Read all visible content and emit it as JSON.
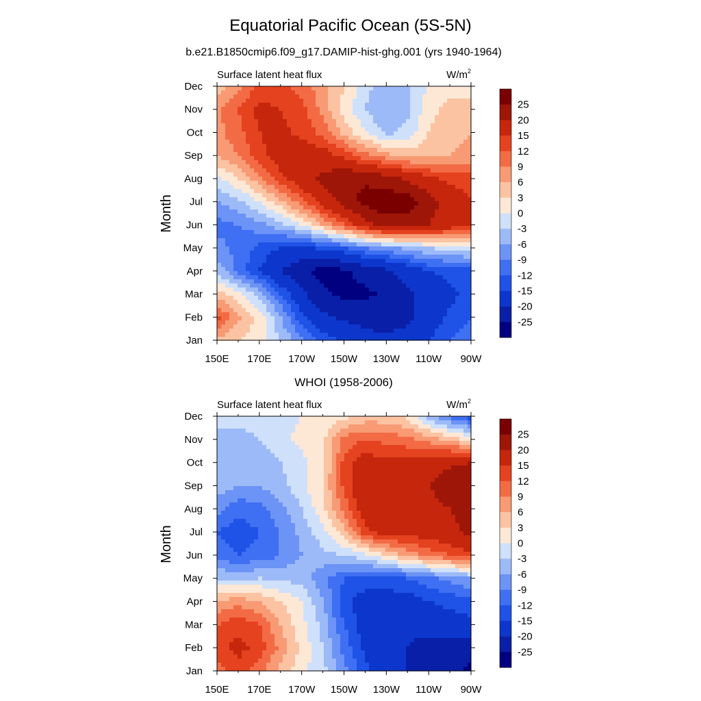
{
  "title": "Equatorial Pacific Ocean (5S-5N)",
  "colors": {
    "levels": [
      -25,
      -20,
      -15,
      -12,
      -9,
      -6,
      -3,
      0,
      3,
      6,
      9,
      12,
      15,
      20,
      25
    ],
    "palette": [
      "#000080",
      "#0a1fa8",
      "#0d37cc",
      "#1f52e6",
      "#3f6ff2",
      "#6c93f6",
      "#9dbaf8",
      "#cfe0fb",
      "#fde8d6",
      "#fcc3a3",
      "#f89a74",
      "#f36b45",
      "#e5421f",
      "#c5260c",
      "#9e1608",
      "#7a0000"
    ]
  },
  "chart_data": [
    {
      "type": "heatmap",
      "subtitle": "b.e21.B1850cmip6.f09_g17.DAMIP-hist-ghg.001 (yrs 1940-1964)",
      "left_label": "Surface latent heat flux",
      "units_base": "W/m",
      "units_sup": "2",
      "xlabel": "",
      "ylabel": "Month",
      "x_ticks": [
        "150E",
        "170E",
        "170W",
        "150W",
        "130W",
        "110W",
        "90W"
      ],
      "x_values_deg_east": [
        150,
        170,
        190,
        210,
        230,
        250,
        270
      ],
      "xlim": [
        150,
        270
      ],
      "y_ticks": [
        "Jan",
        "Feb",
        "Mar",
        "Apr",
        "May",
        "Jun",
        "Jul",
        "Aug",
        "Sep",
        "Oct",
        "Nov",
        "Dec"
      ],
      "colorbar_labels": [
        "25",
        "20",
        "15",
        "12",
        "9",
        "6",
        "3",
        "0",
        "-3",
        "-6",
        "-9",
        "-12",
        "-15",
        "-20",
        "-25"
      ],
      "grid_longitudes": [
        150,
        160,
        170,
        180,
        190,
        200,
        210,
        220,
        230,
        240,
        250,
        260,
        270
      ],
      "z": [
        [
          5,
          3,
          1,
          -3,
          -8,
          -13,
          -16,
          -18,
          -18,
          -18,
          -15,
          -12,
          -10
        ],
        [
          13,
          7,
          2,
          -6,
          -14,
          -19,
          -21,
          -22,
          -24,
          -21,
          -18,
          -14,
          -12
        ],
        [
          5,
          1,
          -4,
          -12,
          -19,
          -24,
          -26,
          -26,
          -24,
          -21,
          -18,
          -16,
          -14
        ],
        [
          -4,
          -10,
          -15,
          -20,
          -24,
          -27,
          -26,
          -23,
          -21,
          -18,
          -15,
          -14,
          -13
        ],
        [
          -8,
          -10,
          -13,
          -15,
          -16,
          -14,
          -12,
          -9,
          -7,
          -5,
          -3,
          -2,
          -1
        ],
        [
          -10,
          -9,
          -7,
          -4,
          0,
          6,
          12,
          18,
          22,
          22,
          20,
          18,
          16
        ],
        [
          -6,
          -4,
          0,
          5,
          11,
          17,
          22,
          27,
          29,
          28,
          22,
          18,
          15
        ],
        [
          -1,
          3,
          8,
          14,
          18,
          21,
          24,
          24,
          22,
          19,
          16,
          14,
          13
        ],
        [
          6,
          9,
          14,
          17,
          18,
          17,
          14,
          10,
          7,
          5,
          5,
          6,
          7
        ],
        [
          8,
          11,
          15,
          16,
          14,
          11,
          5,
          0,
          -4,
          -2,
          3,
          5,
          6
        ],
        [
          8,
          12,
          16,
          15,
          13,
          8,
          2,
          -3,
          -6,
          -4,
          2,
          4,
          4
        ],
        [
          4,
          8,
          13,
          13,
          11,
          7,
          3,
          -2,
          -5,
          -3,
          0,
          2,
          2
        ]
      ]
    },
    {
      "type": "heatmap",
      "subtitle": "WHOI (1958-2006)",
      "left_label": "Surface latent heat flux",
      "units_base": "W/m",
      "units_sup": "2",
      "xlabel": "",
      "ylabel": "Month",
      "x_ticks": [
        "150E",
        "170E",
        "170W",
        "150W",
        "130W",
        "110W",
        "90W"
      ],
      "x_values_deg_east": [
        150,
        170,
        190,
        210,
        230,
        250,
        270
      ],
      "xlim": [
        150,
        270
      ],
      "y_ticks": [
        "Jan",
        "Feb",
        "Mar",
        "Apr",
        "May",
        "Jun",
        "Jul",
        "Aug",
        "Sep",
        "Oct",
        "Nov",
        "Dec"
      ],
      "colorbar_labels": [
        "25",
        "20",
        "15",
        "12",
        "9",
        "6",
        "3",
        "0",
        "-3",
        "-6",
        "-9",
        "-12",
        "-15",
        "-20",
        "-25"
      ],
      "grid_longitudes": [
        150,
        160,
        170,
        180,
        190,
        200,
        210,
        220,
        230,
        240,
        250,
        260,
        270
      ],
      "z": [
        [
          10,
          14,
          10,
          5,
          1,
          -2,
          -8,
          -14,
          -18,
          -20,
          -22,
          -24,
          -26
        ],
        [
          14,
          16,
          14,
          8,
          2,
          -3,
          -10,
          -16,
          -18,
          -20,
          -22,
          -22,
          -23
        ],
        [
          12,
          14,
          12,
          6,
          1,
          -4,
          -12,
          -17,
          -18,
          -19,
          -18,
          -17,
          -16
        ],
        [
          6,
          8,
          6,
          3,
          0,
          -6,
          -14,
          -17,
          -17,
          -17,
          -15,
          -14,
          -13
        ],
        [
          -3,
          -4,
          -3,
          -4,
          -4,
          -8,
          -12,
          -13,
          -13,
          -12,
          -10,
          -8,
          -6
        ],
        [
          -10,
          -12,
          -11,
          -9,
          -6,
          -4,
          -3,
          -1,
          3,
          7,
          10,
          12,
          14
        ],
        [
          -12,
          -14,
          -12,
          -9,
          -5,
          -1,
          5,
          14,
          17,
          17,
          17,
          19,
          21
        ],
        [
          -8,
          -11,
          -10,
          -7,
          -3,
          2,
          10,
          18,
          19,
          17,
          18,
          20,
          21
        ],
        [
          -4,
          -6,
          -6,
          -4,
          -1,
          3,
          13,
          19,
          20,
          19,
          20,
          23,
          24
        ],
        [
          -5,
          -6,
          -6,
          -3,
          -1,
          2,
          13,
          17,
          16,
          16,
          17,
          19,
          20
        ],
        [
          -3,
          -4,
          -3,
          -1,
          1,
          2,
          10,
          12,
          11,
          10,
          8,
          5,
          2
        ],
        [
          -3,
          -2,
          -2,
          -1,
          0,
          0,
          2,
          4,
          4,
          2,
          -5,
          -10,
          -14
        ]
      ]
    }
  ]
}
